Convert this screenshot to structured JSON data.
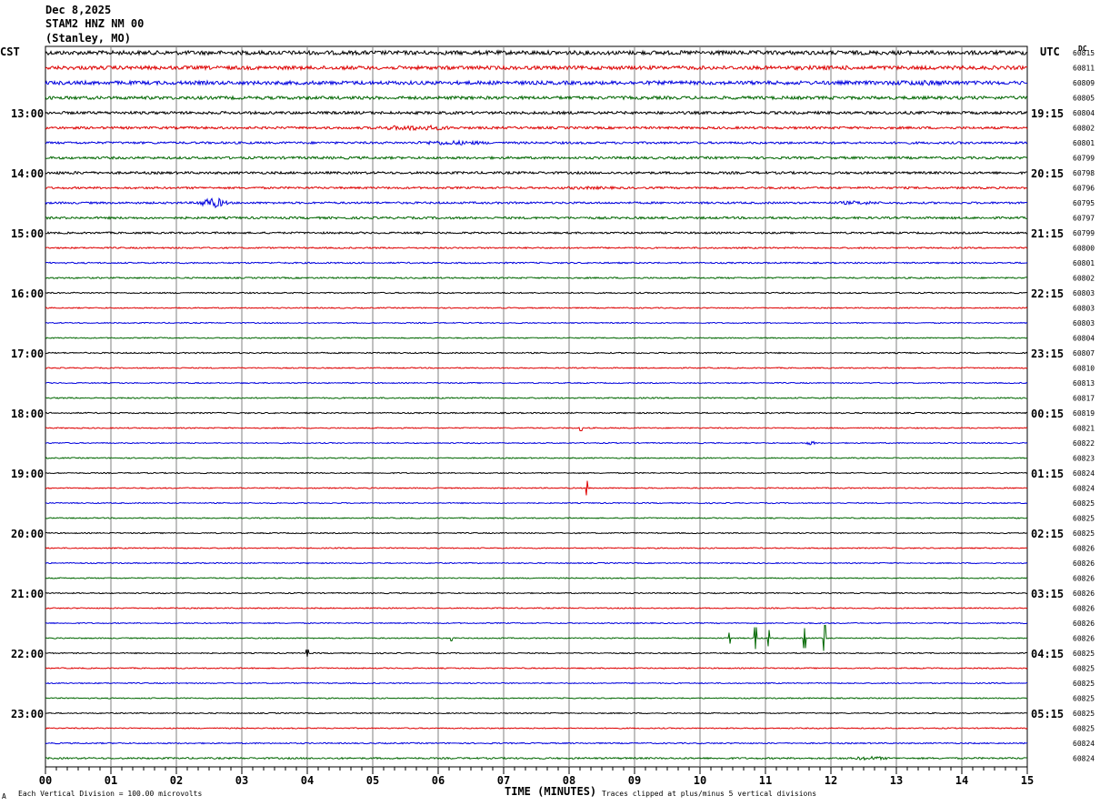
{
  "header": {
    "date": "Dec 8,2025",
    "station": "STAM2 HNZ NM 00",
    "location": "(Stanley, MO)"
  },
  "left_zone": "CST",
  "right_zone": "UTC",
  "dc_label": "DC",
  "footer": {
    "mark": "A",
    "scale_note": "Each Vertical Division =  100.00 microvolts",
    "clip_note": "Traces clipped at plus/minus 5 vertical divisions"
  },
  "chart_data": {
    "type": "line",
    "xlabel": "TIME (MINUTES)",
    "x_ticks": [
      "00",
      "01",
      "02",
      "03",
      "04",
      "05",
      "06",
      "07",
      "08",
      "09",
      "10",
      "11",
      "12",
      "13",
      "14",
      "15"
    ],
    "xlim": [
      0,
      15
    ],
    "left_hour_labels": [
      "13:00",
      "14:00",
      "15:00",
      "16:00",
      "17:00",
      "18:00",
      "19:00",
      "20:00",
      "21:00",
      "22:00",
      "23:00"
    ],
    "right_hour_labels": [
      "19:15",
      "20:15",
      "21:15",
      "22:15",
      "23:15",
      "00:15",
      "01:15",
      "02:15",
      "03:15",
      "04:15",
      "05:15"
    ],
    "hour_label_first_row": 4,
    "rows_per_hour": 4,
    "trace_colors": [
      "#000000",
      "#dd0000",
      "#0000dd",
      "#006600"
    ],
    "dc_values": [
      "60815",
      "60811",
      "60809",
      "60805",
      "60804",
      "60802",
      "60801",
      "60799",
      "60798",
      "60796",
      "60795",
      "60797",
      "60799",
      "60800",
      "60801",
      "60802",
      "60803",
      "60803",
      "60803",
      "60804",
      "60807",
      "60810",
      "60813",
      "60817",
      "60819",
      "60821",
      "60822",
      "60823",
      "60824",
      "60824",
      "60825",
      "60825",
      "60825",
      "60826",
      "60826",
      "60826",
      "60826",
      "60826",
      "60826",
      "60826",
      "60825",
      "60825",
      "60825",
      "60825",
      "60825",
      "60825",
      "60824",
      "60824"
    ],
    "trace_amplitudes": [
      2.2,
      2.0,
      2.0,
      1.7,
      1.5,
      1.3,
      1.2,
      1.3,
      1.3,
      1.1,
      1.1,
      1.2,
      1.0,
      0.8,
      0.8,
      0.8,
      0.7,
      0.6,
      0.6,
      0.6,
      0.7,
      0.6,
      0.6,
      0.7,
      0.7,
      0.6,
      0.6,
      0.6,
      0.6,
      0.6,
      0.6,
      0.6,
      0.6,
      0.6,
      0.6,
      0.6,
      0.6,
      0.6,
      0.6,
      0.6,
      0.6,
      0.6,
      0.6,
      0.6,
      0.6,
      0.6,
      0.7,
      0.9
    ],
    "events": [
      {
        "row": 0,
        "from": 1.5,
        "to": 4.2,
        "amp": 1.8
      },
      {
        "row": 0,
        "from": 11.4,
        "to": 14.5,
        "amp": 2.2
      },
      {
        "row": 1,
        "from": 1.8,
        "to": 2.3,
        "amp": 2.0
      },
      {
        "row": 1,
        "from": 11.0,
        "to": 13.2,
        "amp": 2.2
      },
      {
        "row": 2,
        "from": 0.3,
        "to": 1.5,
        "amp": 1.6
      },
      {
        "row": 2,
        "from": 12.8,
        "to": 14.0,
        "amp": 2.8
      },
      {
        "row": 5,
        "from": 5.0,
        "to": 6.3,
        "amp": 2.8
      },
      {
        "row": 6,
        "from": 5.6,
        "to": 6.8,
        "amp": 2.4
      },
      {
        "row": 7,
        "from": 3.3,
        "to": 5.2,
        "amp": 1.4
      },
      {
        "row": 8,
        "from": 0.0,
        "to": 0.8,
        "amp": 1.6
      },
      {
        "row": 9,
        "from": 7.8,
        "to": 8.8,
        "amp": 1.6
      },
      {
        "row": 10,
        "from": 2.3,
        "to": 2.8,
        "amp": 5.5
      },
      {
        "row": 10,
        "from": 12.0,
        "to": 12.8,
        "amp": 2.0
      },
      {
        "row": 26,
        "from": 11.6,
        "to": 11.8,
        "amp": 2.0
      },
      {
        "row": 47,
        "from": 12.3,
        "to": 12.9,
        "amp": 2.0
      }
    ],
    "spikes": [
      {
        "row": 25,
        "x": 8.18,
        "amp": 3
      },
      {
        "row": 29,
        "x": 8.27,
        "amp": 8
      },
      {
        "row": 39,
        "x": 10.45,
        "amp": 6
      },
      {
        "row": 39,
        "x": 10.85,
        "amp": 12
      },
      {
        "row": 39,
        "x": 11.05,
        "amp": 9
      },
      {
        "row": 39,
        "x": 11.6,
        "amp": 11
      },
      {
        "row": 39,
        "x": 11.9,
        "amp": 14
      },
      {
        "row": 39,
        "x": 6.2,
        "amp": 3
      },
      {
        "row": 40,
        "x": 4.0,
        "amp": 4
      }
    ]
  }
}
